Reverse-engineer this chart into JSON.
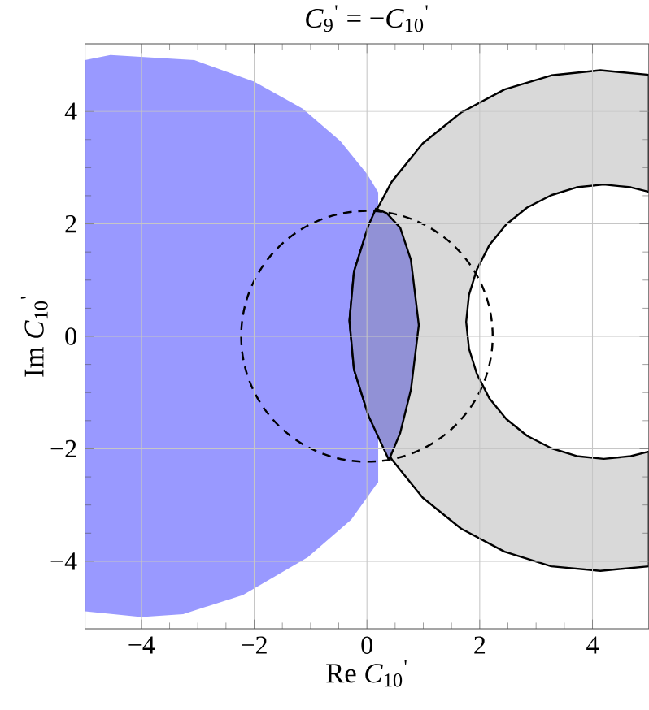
{
  "chart_data": {
    "type": "area",
    "title": "*C*$_{9}$$^{'}$ = −*C*$_{10}$$^{'}$",
    "xlabel": "Re *C*$_{10}$$^{'}$",
    "ylabel": "Im *C*$_{10}$$^{'}$",
    "xlim": [
      -5,
      5
    ],
    "ylim": [
      -5.2,
      5.2
    ],
    "xticks": [
      {
        "value": -4,
        "label": "−4"
      },
      {
        "value": -2,
        "label": "−2"
      },
      0,
      2,
      4
    ],
    "yticks": [
      {
        "value": -4,
        "label": "−4"
      },
      {
        "value": -2,
        "label": "−2"
      },
      0,
      2,
      4
    ],
    "grid": true,
    "series": [
      {
        "color": "#9999ff",
        "x": [
          -5,
          -4.55,
          -3.06,
          -2.0,
          -1.14,
          -0.47,
          0,
          0.2,
          0.2,
          -0.28,
          -1.05,
          -2.2,
          -3.26,
          -4,
          -5
        ],
        "values": [
          4.91,
          5.0,
          4.91,
          4.53,
          4.05,
          3.47,
          2.89,
          2.56,
          -2.59,
          -3.26,
          -3.93,
          -4.6,
          -4.94,
          -4.99,
          -4.89
        ]
      },
      {
        "color": "#d9d9d9",
        "line_style": "solid",
        "x": [
          5,
          4.14,
          3.27,
          2.44,
          1.67,
          0.99,
          0.44,
          0.03,
          -0.23,
          -0.31,
          -0.23,
          0.03,
          0.44,
          0.99,
          1.67,
          2.44,
          3.27,
          4.14,
          5,
          5,
          4.68,
          4.2,
          3.72,
          3.27,
          2.84,
          2.47,
          2.17,
          1.95,
          1.81,
          1.76,
          1.81,
          1.95,
          2.17,
          2.47,
          2.84,
          3.27,
          3.72,
          4.2,
          4.68,
          5
        ],
        "values": [
          4.65,
          4.73,
          4.64,
          4.39,
          3.98,
          3.43,
          2.75,
          1.98,
          1.15,
          0.28,
          -0.59,
          -1.42,
          -2.19,
          -2.87,
          -3.42,
          -3.83,
          -4.09,
          -4.17,
          -4.09,
          -2.05,
          -2.13,
          -2.18,
          -2.13,
          -1.99,
          -1.77,
          -1.47,
          -1.1,
          -0.67,
          -0.22,
          0.26,
          0.74,
          1.19,
          1.62,
          1.99,
          2.29,
          2.51,
          2.65,
          2.7,
          2.65,
          2.57
        ]
      },
      {
        "color": "#9191d6",
        "line_style": "solid",
        "x": [
          0.16,
          0.35,
          0.59,
          0.78,
          0.92,
          0.78,
          0.59,
          0.39,
          0.03,
          -0.23,
          -0.31,
          -0.23,
          0.03,
          0.16
        ],
        "values": [
          2.27,
          2.19,
          1.93,
          1.36,
          0.2,
          -0.95,
          -1.72,
          -2.2,
          -1.42,
          -0.59,
          0.28,
          1.15,
          1.98,
          2.27
        ]
      }
    ]
  }
}
